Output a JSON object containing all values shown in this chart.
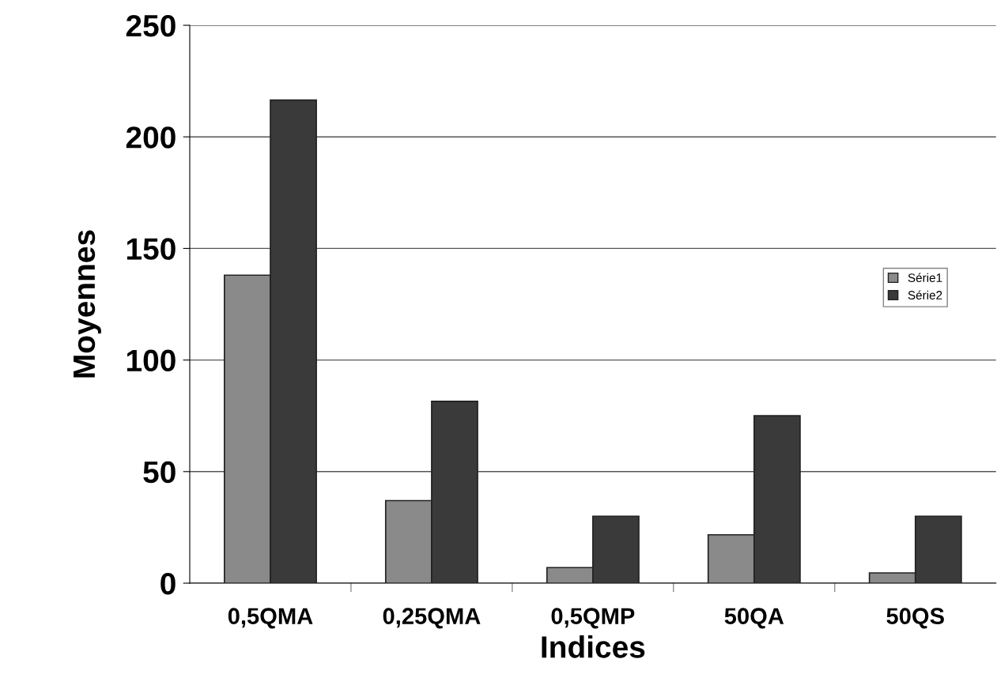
{
  "chart_data": {
    "type": "bar",
    "xlabel": "Indices",
    "ylabel": "Moyennes",
    "categories": [
      "0,5QMA",
      "0,25QMA",
      "0,5QMP",
      "50QA",
      "50QS"
    ],
    "series": [
      {
        "name": "Série1",
        "color": "#8a8a8a",
        "values": [
          138,
          37,
          7,
          21.7,
          4.6
        ]
      },
      {
        "name": "Série2",
        "color": "#3a3a3a",
        "values": [
          216.5,
          81.5,
          30,
          75,
          30
        ]
      }
    ],
    "ylim": [
      0,
      250
    ],
    "yticks": [
      0,
      50,
      100,
      150,
      200,
      250
    ],
    "grid": "y",
    "legend": "right"
  }
}
